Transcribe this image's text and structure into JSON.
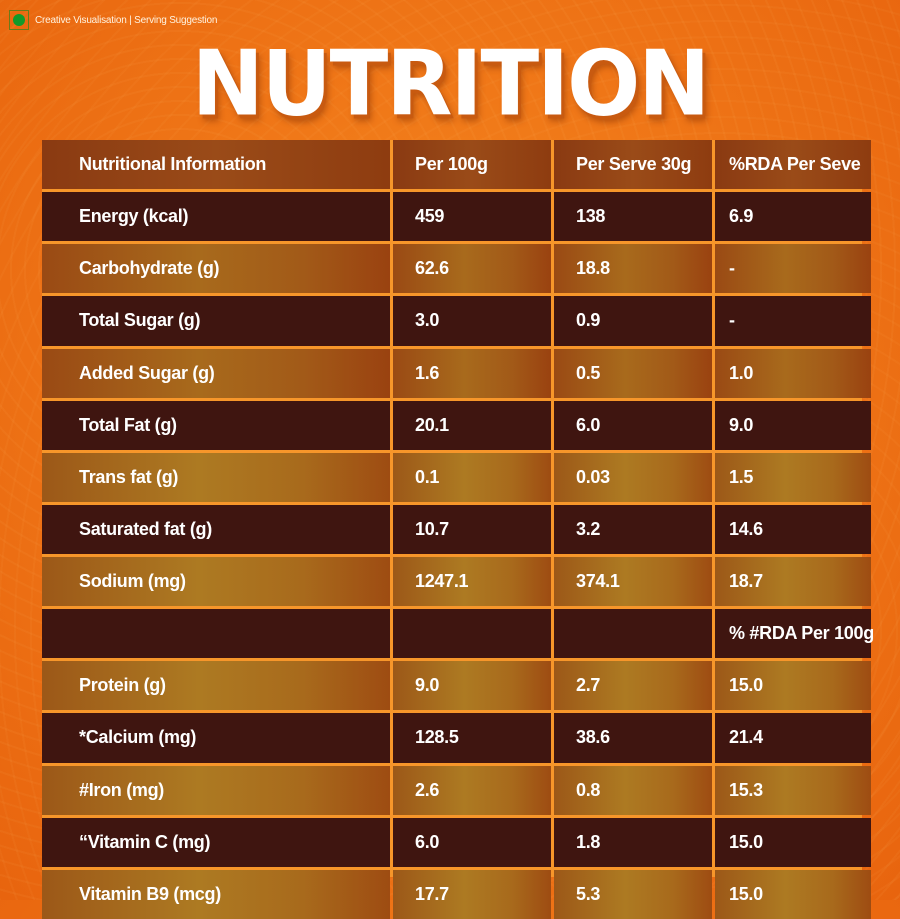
{
  "badge": {
    "icon": "veg-mark-icon",
    "text": "Creative Visualisation | Serving Suggestion"
  },
  "title": "NUTRITION",
  "colors": {
    "background": "#f07818",
    "dark_row": "#3f1510",
    "light_row": "#a86a1c",
    "grid_line": "#f7962a",
    "text": "#ffffff"
  },
  "table": {
    "headers": [
      "Nutritional Information",
      "Per 100g",
      "Per Serve 30g",
      "%RDA Per Seve"
    ],
    "rows": [
      {
        "name": "Energy (kcal)",
        "per100": "459",
        "perServe": "138",
        "rda": "6.9"
      },
      {
        "name": "Carbohydrate (g)",
        "per100": "62.6",
        "perServe": "18.8",
        "rda": "-"
      },
      {
        "name": "Total Sugar (g)",
        "per100": "3.0",
        "perServe": "0.9",
        "rda": "-"
      },
      {
        "name": "Added Sugar (g)",
        "per100": "1.6",
        "perServe": "0.5",
        "rda": "1.0"
      },
      {
        "name": "Total Fat (g)",
        "per100": "20.1",
        "perServe": "6.0",
        "rda": "9.0"
      },
      {
        "name": "Trans fat (g)",
        "per100": "0.1",
        "perServe": "0.03",
        "rda": "1.5"
      },
      {
        "name": "Saturated fat (g)",
        "per100": "10.7",
        "perServe": "3.2",
        "rda": "14.6"
      },
      {
        "name": "Sodium (mg)",
        "per100": "1247.1",
        "perServe": "374.1",
        "rda": "18.7"
      },
      {
        "name": "",
        "per100": "",
        "perServe": "",
        "rda": "% #RDA Per 100g"
      },
      {
        "name": "Protein (g)",
        "per100": "9.0",
        "perServe": "2.7",
        "rda": "15.0"
      },
      {
        "name": "*Calcium (mg)",
        "per100": "128.5",
        "perServe": "38.6",
        "rda": "21.4"
      },
      {
        "name": "#Iron (mg)",
        "per100": "2.6",
        "perServe": "0.8",
        "rda": "15.3"
      },
      {
        "name": "“Vitamin C (mg)",
        "per100": "6.0",
        "perServe": "1.8",
        "rda": "15.0"
      },
      {
        "name": "Vitamin B9 (mcg)",
        "per100": "17.7",
        "perServe": "5.3",
        "rda": "15.0"
      }
    ]
  }
}
